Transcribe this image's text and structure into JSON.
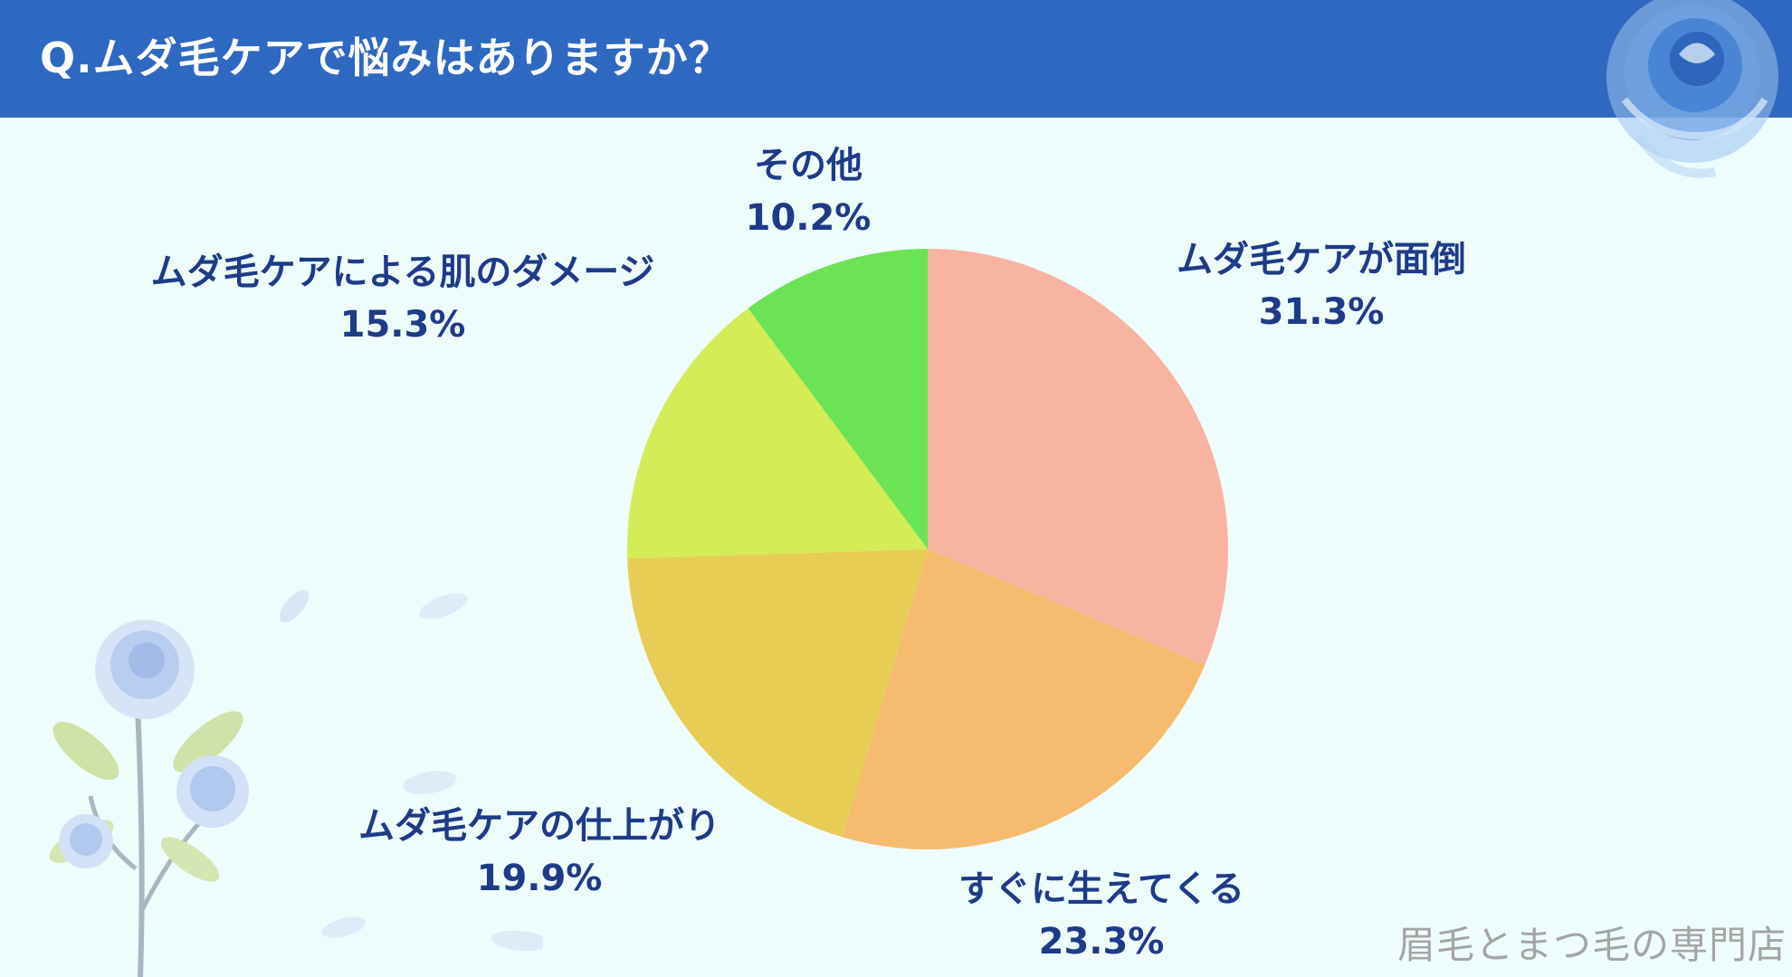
{
  "header": {
    "question": "Q.ムダ毛ケアで悩みはありますか？",
    "bar_color": "#2d69c0"
  },
  "watermark": "眉毛とまつ毛の専門店",
  "icons": [
    "blue-rose-icon",
    "blue-flower-branch-icon",
    "petal-icon"
  ],
  "chart_data": {
    "type": "pie",
    "title": "Q.ムダ毛ケアで悩みはありますか？",
    "start": "top",
    "direction": "clockwise",
    "legend": "none",
    "slices": [
      {
        "label": "ムダ毛ケアが面倒",
        "value": 31.3,
        "display": "31.3%",
        "color": "#f8b4a2"
      },
      {
        "label": "すぐに生えてくる",
        "value": 23.3,
        "display": "23.3%",
        "color": "#f6bb6e"
      },
      {
        "label": "ムダ毛ケアの仕上がり",
        "value": 19.9,
        "display": "19.9%",
        "color": "#e6cd55"
      },
      {
        "label": "ムダ毛ケアによる肌のダメージ",
        "value": 15.3,
        "display": "15.3%",
        "color": "#d3ec57"
      },
      {
        "label": "その他",
        "value": 10.2,
        "display": "10.2%",
        "color": "#6ce354"
      }
    ]
  }
}
